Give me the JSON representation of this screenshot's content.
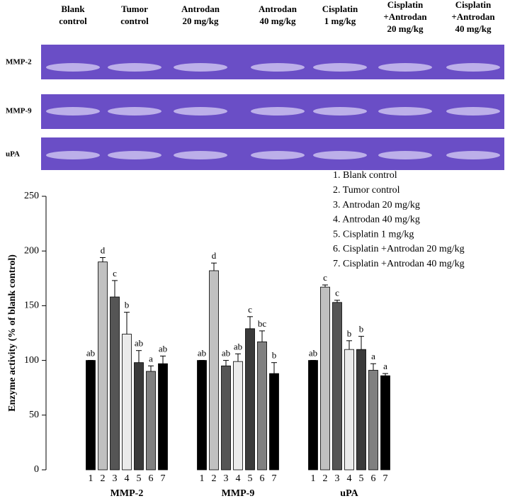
{
  "gel": {
    "lanes": [
      [
        "Blank",
        "control"
      ],
      [
        "Tumor",
        "control"
      ],
      [
        "Antrodan",
        "20 mg/kg"
      ],
      [
        "Antrodan",
        "40 mg/kg"
      ],
      [
        "Cisplatin",
        "1 mg/kg"
      ],
      [
        "Cisplatin",
        "+Antrodan",
        "20 mg/kg"
      ],
      [
        "Cisplatin",
        "+Antrodan",
        "40 mg/kg"
      ]
    ],
    "rows": [
      "MMP-2",
      "MMP-9",
      "uPA"
    ]
  },
  "chart_data": {
    "type": "bar",
    "y_label": "Enzyme activity (% of blank control)",
    "categories": [
      "MMP-2",
      "MMP-9",
      "uPA"
    ],
    "bar_labels": [
      "1",
      "2",
      "3",
      "4",
      "5",
      "6",
      "7"
    ],
    "ylim": [
      0,
      250
    ],
    "yticks": [
      0,
      50,
      100,
      150,
      200,
      250
    ],
    "series": [
      {
        "name": "1. Blank control",
        "color": "#000000",
        "values": [
          100,
          100,
          100
        ],
        "errors": [
          0,
          0,
          0
        ],
        "letters": [
          "ab",
          "ab",
          "ab"
        ]
      },
      {
        "name": "2. Tumor control",
        "color": "#c0c0c0",
        "values": [
          190,
          182,
          167
        ],
        "errors": [
          4,
          7,
          2
        ],
        "letters": [
          "d",
          "d",
          "c"
        ]
      },
      {
        "name": "3. Antrodan 20 mg/kg",
        "color": "#555555",
        "values": [
          158,
          95,
          153
        ],
        "errors": [
          15,
          5,
          2
        ],
        "letters": [
          "c",
          "ab",
          "c"
        ]
      },
      {
        "name": "4. Antrodan 40 mg/kg",
        "color": "#ebebeb",
        "values": [
          124,
          99,
          110
        ],
        "errors": [
          20,
          7,
          8
        ],
        "letters": [
          "b",
          "ab",
          "b"
        ]
      },
      {
        "name": "5. Cisplatin 1 mg/kg",
        "color": "#3a3a3a",
        "values": [
          98,
          129,
          110
        ],
        "errors": [
          11,
          11,
          12
        ],
        "letters": [
          "ab",
          "c",
          "b"
        ]
      },
      {
        "name": "6. Cisplatin +Antrodan 20 mg/kg",
        "color": "#808080",
        "values": [
          90,
          117,
          91
        ],
        "errors": [
          5,
          10,
          6
        ],
        "letters": [
          "a",
          "bc",
          "a"
        ]
      },
      {
        "name": "7. Cisplatin +Antrodan 40 mg/kg",
        "color": "#000000",
        "values": [
          97,
          88,
          86
        ],
        "errors": [
          7,
          10,
          2
        ],
        "letters": [
          "ab",
          "b",
          "a"
        ]
      }
    ]
  }
}
